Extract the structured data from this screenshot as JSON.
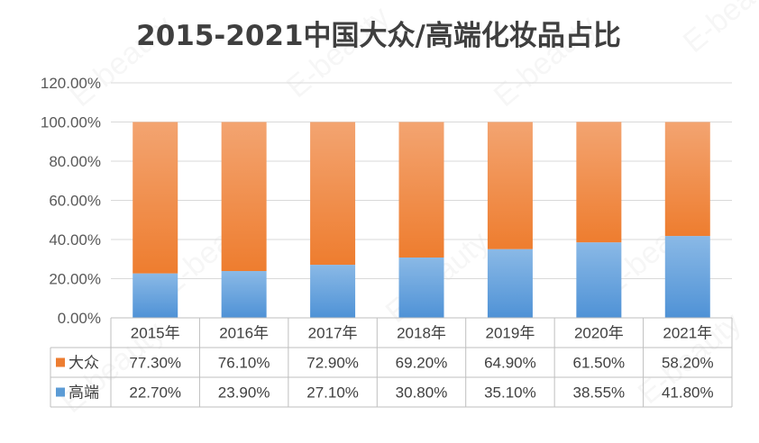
{
  "chart_data": {
    "type": "stacked-bar",
    "title": "2015-2021中国大众/高端化妆品占比",
    "categories": [
      "2015年",
      "2016年",
      "2017年",
      "2018年",
      "2019年",
      "2020年",
      "2021年"
    ],
    "series": [
      {
        "name": "大众",
        "color": "#ed7d31",
        "values": [
          77.3,
          76.1,
          72.9,
          69.2,
          64.9,
          61.5,
          58.2
        ],
        "labels": [
          "77.30%",
          "76.10%",
          "72.90%",
          "69.20%",
          "64.90%",
          "61.50%",
          "58.20%"
        ]
      },
      {
        "name": "高端",
        "color": "#5b9bd5",
        "values": [
          22.7,
          23.9,
          27.1,
          30.8,
          35.1,
          38.55,
          41.8
        ],
        "labels": [
          "22.70%",
          "23.90%",
          "27.10%",
          "30.80%",
          "35.10%",
          "38.55%",
          "41.80%"
        ]
      }
    ],
    "ylim": [
      0,
      120
    ],
    "yticks": [
      "0.00%",
      "20.00%",
      "40.00%",
      "60.00%",
      "80.00%",
      "100.00%",
      "120.00%"
    ],
    "xlabel": "",
    "ylabel": "",
    "grid": true,
    "legend": "data-table",
    "watermark": "E-beauty"
  }
}
